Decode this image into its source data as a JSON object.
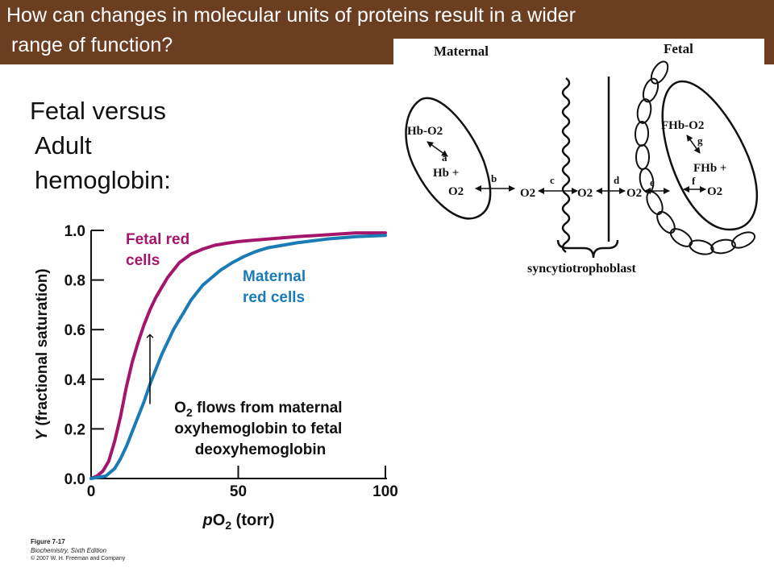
{
  "header": {
    "title_line_1": "How can changes in molecular units of proteins result in a wider",
    "title_line_2": "range of function?"
  },
  "subtitle": {
    "line_1": "Fetal versus",
    "line_2": "Adult",
    "line_3": "hemoglobin:"
  },
  "colors": {
    "header_bg": "#6b3e22",
    "fetal": "#a3166b",
    "maternal": "#1a7bb5"
  },
  "chart_data": {
    "type": "line",
    "xlabel": "pO2 (torr)",
    "ylabel": "Y (fractional saturation)",
    "xlim": [
      0,
      100
    ],
    "ylim": [
      0,
      1.0
    ],
    "x_ticks": [
      "0",
      "50",
      "100"
    ],
    "y_ticks": [
      "0.0",
      "0.2",
      "0.4",
      "0.6",
      "0.8",
      "1.0"
    ],
    "grid": false,
    "series": [
      {
        "name": "Fetal red cells",
        "label_lines": [
          "Fetal red",
          "cells"
        ],
        "color": "#a3166b",
        "x": [
          0,
          2,
          4,
          6,
          8,
          10,
          12,
          14,
          16,
          18,
          20,
          22,
          24,
          26,
          28,
          30,
          34,
          38,
          42,
          46,
          50,
          55,
          60,
          70,
          80,
          90,
          100
        ],
        "y": [
          0.0,
          0.01,
          0.03,
          0.07,
          0.15,
          0.25,
          0.37,
          0.47,
          0.55,
          0.62,
          0.68,
          0.73,
          0.77,
          0.81,
          0.84,
          0.87,
          0.905,
          0.925,
          0.94,
          0.948,
          0.955,
          0.96,
          0.965,
          0.975,
          0.982,
          0.99,
          0.99
        ]
      },
      {
        "name": "Maternal red cells",
        "label_lines": [
          "Maternal",
          "red cells"
        ],
        "color": "#1a7bb5",
        "x": [
          0,
          5,
          8,
          10,
          12,
          14,
          16,
          18,
          20,
          22,
          24,
          26,
          28,
          30,
          32,
          34,
          36,
          38,
          40,
          44,
          48,
          52,
          56,
          60,
          70,
          80,
          90,
          100
        ],
        "y": [
          0.0,
          0.01,
          0.04,
          0.08,
          0.13,
          0.19,
          0.25,
          0.31,
          0.38,
          0.44,
          0.5,
          0.55,
          0.6,
          0.64,
          0.68,
          0.72,
          0.75,
          0.78,
          0.8,
          0.84,
          0.87,
          0.895,
          0.915,
          0.93,
          0.95,
          0.965,
          0.975,
          0.98
        ]
      }
    ],
    "annotation": {
      "lines": [
        "O2 flows from maternal",
        "oxyhemoglobin to fetal",
        "deoxyhemoglobin"
      ],
      "arrow_x": 20,
      "arrow_from_y": 0.3,
      "arrow_to_y": 0.58
    }
  },
  "diagram": {
    "maternal_label": "Maternal",
    "fetal_label": "Fetal",
    "syncytio_label": "syncytiotrophoblast",
    "maternal_cell": {
      "hbo2": "Hb-O2",
      "hb_plus": "Hb +",
      "o2": "O2",
      "step_a": "a"
    },
    "fetal_cell": {
      "fhbo2": "FHb-O2",
      "fhb_plus": "FHb +",
      "o2": "O2",
      "step_g": "g"
    },
    "flow": {
      "o2_1": "O2",
      "o2_2": "O2",
      "o2_3": "O2",
      "b": "b",
      "c": "c",
      "d": "d",
      "e": "e",
      "f": "f"
    }
  },
  "credits": {
    "figure": "Figure 7-17",
    "book": "Biochemistry, Sixth Edition",
    "copyright": "© 2007 W. H. Freeman and Company"
  }
}
